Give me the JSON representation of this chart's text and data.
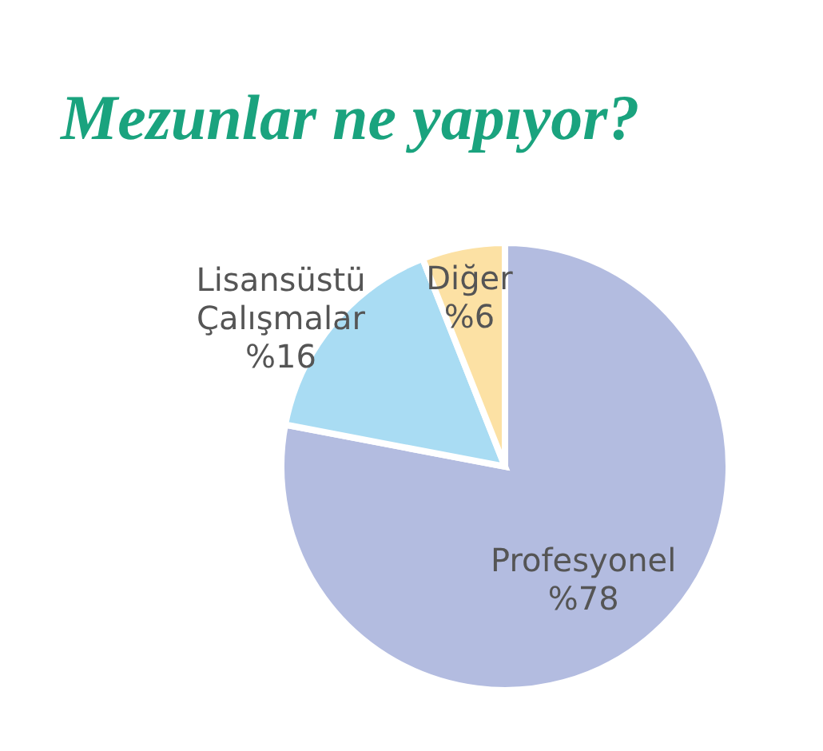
{
  "chart_data": {
    "type": "pie",
    "title": "Mezunlar ne yapıyor?",
    "categories": [
      "Profesyonel",
      "Lisansüstü Çalışmalar",
      "Diğer"
    ],
    "values": [
      78,
      16,
      6
    ],
    "value_labels": [
      "%78",
      "%16",
      "%6"
    ],
    "colors": [
      "#b3bce0",
      "#a9dcf3",
      "#fce1a4"
    ]
  }
}
